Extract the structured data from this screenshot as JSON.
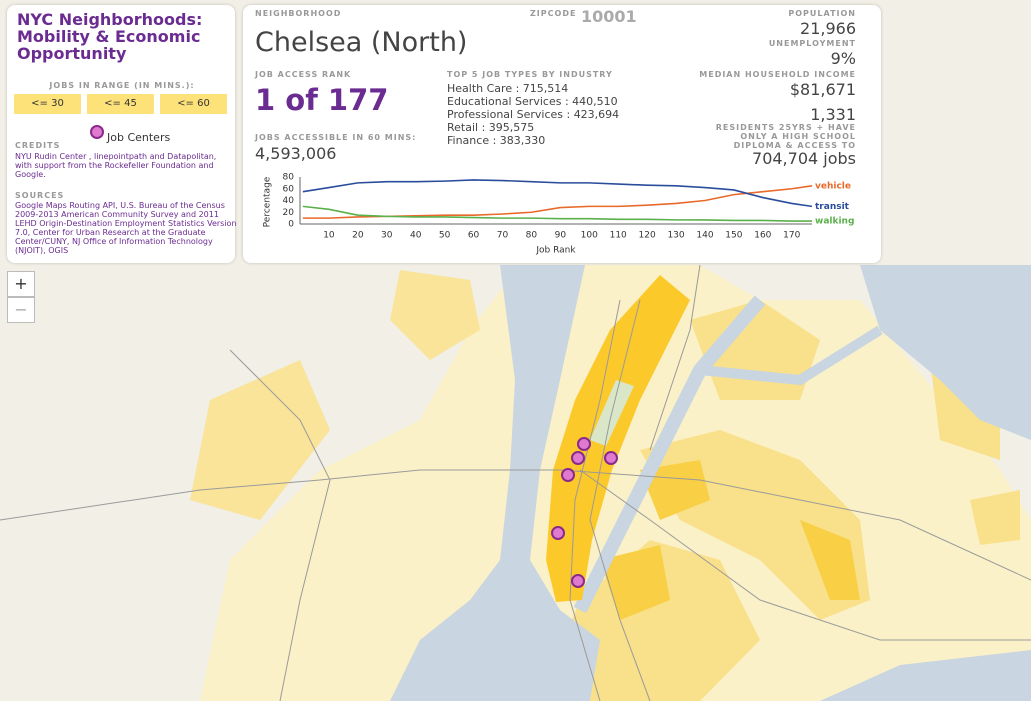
{
  "sidebar": {
    "title": "NYC Neighborhoods: Mobility & Economic Opportunity",
    "range_label": "JOBS IN RANGE (IN MINS.):",
    "range_buttons": [
      "<= 30",
      "<= 45",
      "<= 60"
    ],
    "legend": "Job Centers",
    "credits_heading": "CREDITS",
    "credits": "NYU Rudin Center , linepointpath and Datapolitan, with support from the Rockefeller Foundation and Google.",
    "sources_heading": "SOURCES",
    "sources": "Google Maps Routing API, U.S. Bureau of the Census 2009-2013 American Community Survey and 2011 LEHD Origin-Destination Employment Statistics Version 7.0, Center for Urban Research at the Graduate Center/CUNY, NJ Office of Information Technology (NJOIT), OGIS"
  },
  "zoom": {
    "in": "+",
    "out": "−"
  },
  "info": {
    "neighborhood_label": "NEIGHBORHOOD",
    "neighborhood": "Chelsea (North)",
    "zipcode_label": "ZIPCODE",
    "zipcode": "10001",
    "rank_label": "JOB ACCESS RANK",
    "rank": "1 of 177",
    "jobs60_label": "JOBS ACCESSIBLE IN 60 MINS:",
    "jobs60": "4,593,006",
    "top5_label": "TOP 5 JOB TYPES BY INDUSTRY",
    "top5": [
      "Health Care : 715,514",
      "Educational Services : 440,510",
      "Professional Services : 423,694",
      "Retail : 395,575",
      "Finance : 383,330"
    ],
    "population_label": "POPULATION",
    "population": "21,966",
    "unemployment_label": "UNEMPLOYMENT",
    "unemployment": "9%",
    "income_label": "MEDIAN HOUSEHOLD INCOME",
    "income": "$81,671",
    "hs_residents": "1,331",
    "hs_label": "RESIDENTS 25YRS + HAVE ONLY A HIGH SCHOOL DIPLOMA & ACCESS TO",
    "hs_jobs": "704,704 jobs"
  },
  "chart_data": {
    "type": "line",
    "y_label": "Percentage",
    "x_label": "Job Rank",
    "x": [
      1,
      10,
      20,
      30,
      40,
      50,
      60,
      70,
      80,
      90,
      100,
      110,
      120,
      130,
      140,
      150,
      160,
      170,
      177
    ],
    "xlim": [
      0,
      177
    ],
    "xticks": [
      10,
      20,
      30,
      40,
      50,
      60,
      70,
      80,
      90,
      100,
      110,
      120,
      130,
      140,
      150,
      160,
      170
    ],
    "ylim": [
      0,
      80
    ],
    "yticks": [
      0,
      20,
      40,
      60,
      80
    ],
    "grid": true,
    "series": [
      {
        "name": "vehicle",
        "color": "#e8692a",
        "values": [
          10,
          10,
          12,
          13,
          14,
          15,
          15,
          17,
          20,
          28,
          30,
          30,
          32,
          35,
          40,
          50,
          55,
          60,
          65
        ]
      },
      {
        "name": "transit",
        "color": "#2a4d9b",
        "values": [
          55,
          62,
          70,
          72,
          72,
          73,
          75,
          74,
          72,
          70,
          70,
          68,
          66,
          65,
          62,
          58,
          45,
          35,
          30
        ]
      },
      {
        "name": "walking",
        "color": "#5ab04a",
        "values": [
          30,
          25,
          15,
          13,
          12,
          12,
          11,
          10,
          10,
          9,
          9,
          8,
          8,
          7,
          7,
          6,
          6,
          5,
          5
        ]
      }
    ]
  }
}
